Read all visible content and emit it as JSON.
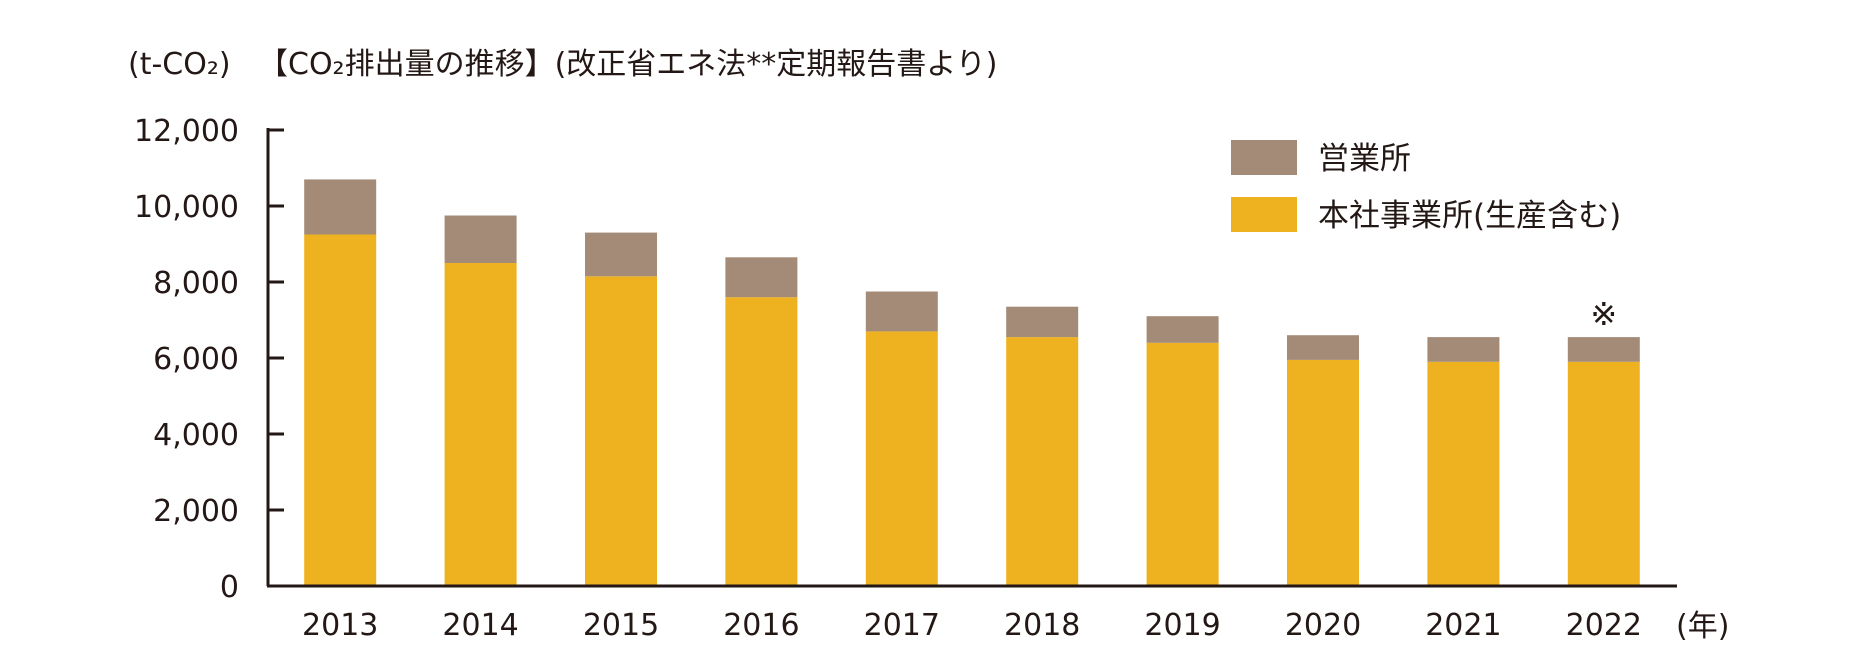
{
  "chart_data": {
    "type": "bar",
    "stacked": true,
    "title": "【CO₂排出量の推移】(改正省エネ法**定期報告書より)",
    "ylabel": "(t-CO₂)",
    "xlabel": "(年)",
    "ylim": [
      0,
      12000
    ],
    "yticks": [
      0,
      2000,
      4000,
      6000,
      8000,
      10000,
      12000
    ],
    "ytick_labels": [
      "0",
      "2,000",
      "4,000",
      "6,000",
      "8,000",
      "10,000",
      "12,000"
    ],
    "categories": [
      "2013",
      "2014",
      "2015",
      "2016",
      "2017",
      "2018",
      "2019",
      "2020",
      "2021",
      "2022"
    ],
    "series": [
      {
        "name": "本社事業所(生産含む)",
        "color": "#EEB11F",
        "values": [
          9250,
          8500,
          8150,
          7600,
          6700,
          6550,
          6400,
          5950,
          5900,
          5900
        ]
      },
      {
        "name": "営業所",
        "color": "#A48B78",
        "values": [
          1450,
          1250,
          1150,
          1050,
          1050,
          800,
          700,
          650,
          650,
          650
        ]
      }
    ],
    "legend_position": "top-right",
    "annotation": {
      "category": "2022",
      "text": "※"
    }
  }
}
